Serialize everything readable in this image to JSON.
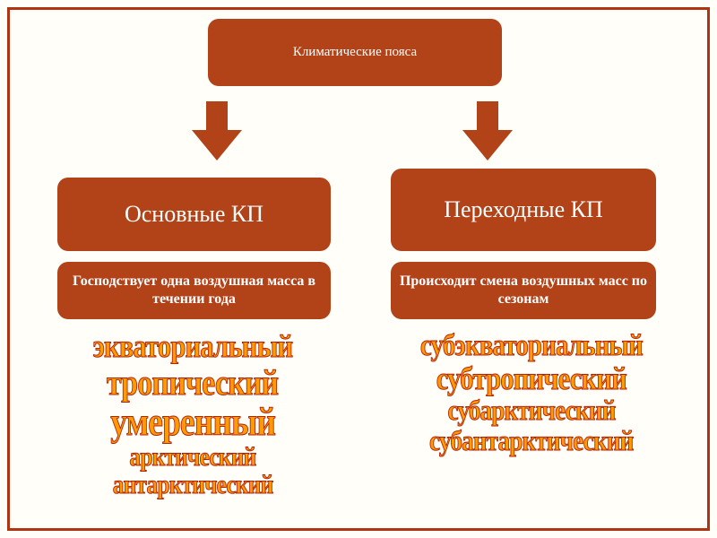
{
  "colors": {
    "page_bg": "#fffef8",
    "frame_border": "#b03412",
    "box_bg": "#b24218",
    "box_text": "#ffffff",
    "arrow_fill": "#b24218",
    "list_fill": "#ff9a00",
    "list_stroke": "#b0240b"
  },
  "title": "Климатические пояса",
  "left": {
    "main": "Основные  КП",
    "desc": "Господствует одна воздушная масса в течении года",
    "items": [
      {
        "text": "экваториальный",
        "fontsize": 36
      },
      {
        "text": "тропический",
        "fontsize": 40
      },
      {
        "text": "умеренный",
        "fontsize": 44
      },
      {
        "text": "арктический",
        "fontsize": 30
      },
      {
        "text": "антарктический",
        "fontsize": 30
      }
    ]
  },
  "right": {
    "main": "Переходные КП",
    "desc": "Происходит смена воздушных масс по сезонам",
    "items": [
      {
        "text": "субэкваториальный",
        "fontsize": 34
      },
      {
        "text": "субтропический",
        "fontsize": 36
      },
      {
        "text": "субарктический",
        "fontsize": 32
      },
      {
        "text": "субантарктический",
        "fontsize": 32
      }
    ]
  }
}
